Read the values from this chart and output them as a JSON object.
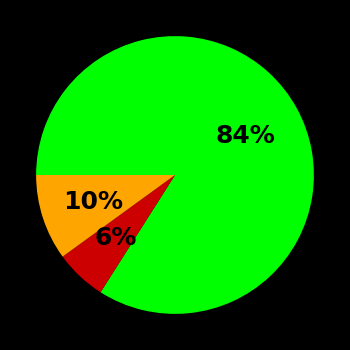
{
  "slices": [
    84,
    6,
    10
  ],
  "colors": [
    "#00ff00",
    "#cc0000",
    "#ffa500"
  ],
  "labels": [
    "84%",
    "6%",
    "10%"
  ],
  "background_color": "#000000",
  "figsize": [
    3.5,
    3.5
  ],
  "dpi": 100,
  "startangle": 180,
  "label_fontsize": 18,
  "label_fontweight": "bold"
}
